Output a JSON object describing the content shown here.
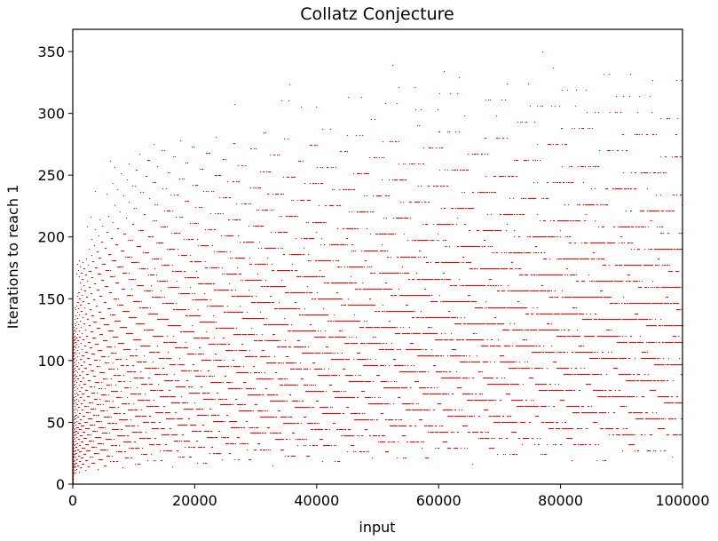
{
  "chart_data": {
    "type": "scatter",
    "title": "Collatz Conjecture",
    "xlabel": "input",
    "ylabel": "Iterations to reach 1",
    "xlim": [
      0,
      100000
    ],
    "ylim": [
      0,
      368
    ],
    "x_ticks": [
      0,
      20000,
      40000,
      60000,
      80000,
      100000
    ],
    "y_ticks": [
      0,
      50,
      100,
      150,
      200,
      250,
      300,
      350
    ],
    "x_tick_labels": [
      "0",
      "20000",
      "40000",
      "60000",
      "80000",
      "100000"
    ],
    "y_tick_labels": [
      "0",
      "50",
      "100",
      "150",
      "200",
      "250",
      "300",
      "350"
    ],
    "x_domain": [
      1,
      100000
    ],
    "series_rule": "number of Collatz steps (n -> n/2 if even, 3n+1 if odd) needed for each integer input in the domain to reach 1",
    "marker_color": "#ff0000",
    "grid": false,
    "legend": "none"
  }
}
